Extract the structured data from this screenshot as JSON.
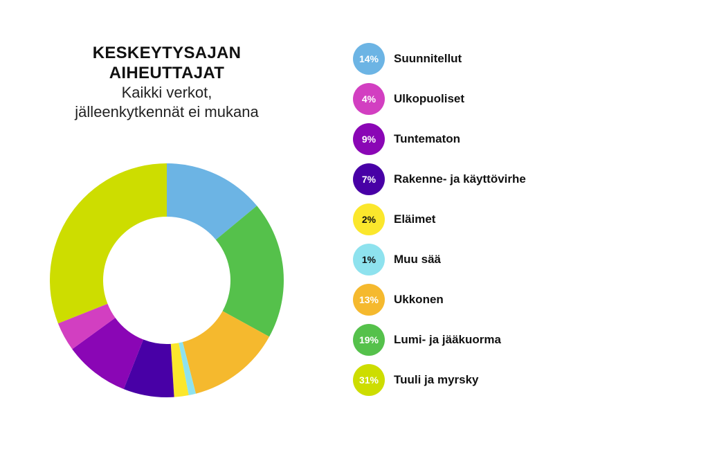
{
  "chart_data": {
    "type": "pie",
    "title_lines": [
      "KESKEYTYSAJAN",
      "AIHEUTTAJAT"
    ],
    "subtitle_lines": [
      "Kaikki verkot,",
      "jälleenkytkennät ei mukana"
    ],
    "slices": [
      {
        "label": "Suunnitellut",
        "value": 14,
        "value_label": "14%",
        "color": "#6cb4e4"
      },
      {
        "label": "Lumi- ja jääkuorma",
        "value": 19,
        "value_label": "19%",
        "color": "#55c14b"
      },
      {
        "label": "Ukkonen",
        "value": 13,
        "value_label": "13%",
        "color": "#f5b92e"
      },
      {
        "label": "Muu sää",
        "value": 1,
        "value_label": "1%",
        "color": "#8ee2ee"
      },
      {
        "label": "Eläimet",
        "value": 2,
        "value_label": "2%",
        "color": "#fbe72c"
      },
      {
        "label": "Rakenne- ja käyttövirhe",
        "value": 7,
        "value_label": "7%",
        "color": "#4800a6"
      },
      {
        "label": "Tuntematon",
        "value": 9,
        "value_label": "9%",
        "color": "#8a06b5"
      },
      {
        "label": "Ulkopuoliset",
        "value": 4,
        "value_label": "4%",
        "color": "#d23fc1"
      },
      {
        "label": "Tuuli ja myrsky",
        "value": 31,
        "value_label": "31%",
        "color": "#cddd00"
      }
    ],
    "legend": [
      {
        "label": "Suunnitellut",
        "value_label": "14%",
        "color": "#6cb4e4"
      },
      {
        "label": "Ulkopuoliset",
        "value_label": "4%",
        "color": "#d23fc1"
      },
      {
        "label": "Tuntematon",
        "value_label": "9%",
        "color": "#8a06b5"
      },
      {
        "label": "Rakenne- ja käyttövirhe",
        "value_label": "7%",
        "color": "#4800a6"
      },
      {
        "label": "Eläimet",
        "value_label": "2%",
        "color": "#fbe72c",
        "dark_text": true
      },
      {
        "label": "Muu sää",
        "value_label": "1%",
        "color": "#8ee2ee",
        "dark_text": true
      },
      {
        "label": "Ukkonen",
        "value_label": "13%",
        "color": "#f5b92e"
      },
      {
        "label": "Lumi- ja jääkuorma",
        "value_label": "19%",
        "color": "#55c14b"
      },
      {
        "label": "Tuuli ja myrsky",
        "value_label": "31%",
        "color": "#cddd00"
      }
    ]
  }
}
